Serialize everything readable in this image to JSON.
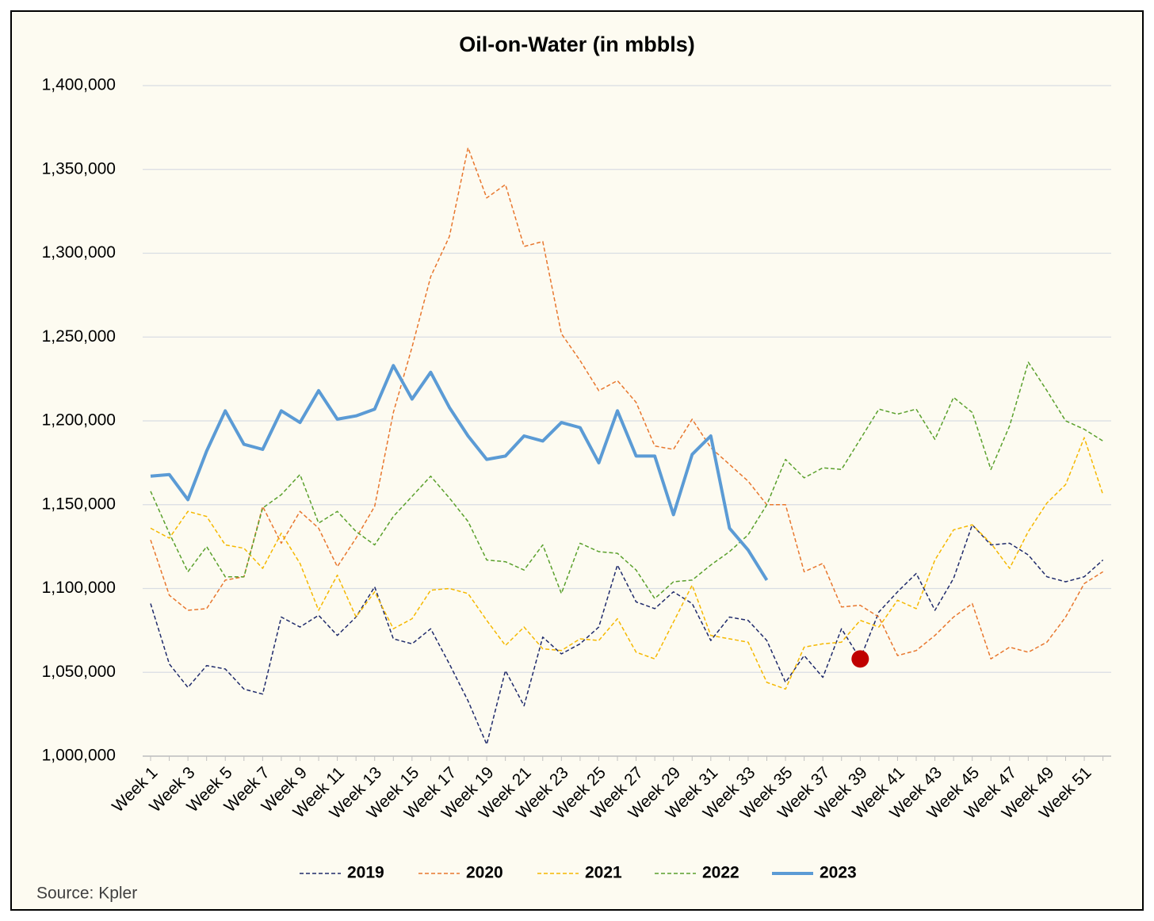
{
  "chart_data": {
    "type": "line",
    "title": "Oil-on-Water (in mbbls)",
    "source": "Source: Kpler",
    "categories": [
      "Week 1",
      null,
      "Week 3",
      null,
      "Week 5",
      null,
      "Week 7",
      null,
      "Week 9",
      null,
      "Week 11",
      null,
      "Week 13",
      null,
      "Week 15",
      null,
      "Week 17",
      null,
      "Week 19",
      null,
      "Week 21",
      null,
      "Week 23",
      null,
      "Week 25",
      null,
      "Week 27",
      null,
      "Week 29",
      null,
      "Week 31",
      null,
      "Week 33",
      null,
      "Week 35",
      null,
      "Week 37",
      null,
      "Week 39",
      null,
      "Week 41",
      null,
      "Week 43",
      null,
      "Week 45",
      null,
      "Week 47",
      null,
      "Week 49",
      null,
      "Week 51",
      null
    ],
    "ylim": [
      1000000,
      1400000
    ],
    "yticks": [
      {
        "value": 1000000,
        "label": "1,000,000"
      },
      {
        "value": 1050000,
        "label": "1,050,000"
      },
      {
        "value": 1100000,
        "label": "1,100,000"
      },
      {
        "value": 1150000,
        "label": "1,150,000"
      },
      {
        "value": 1200000,
        "label": "1,200,000"
      },
      {
        "value": 1250000,
        "label": "1,250,000"
      },
      {
        "value": 1300000,
        "label": "1,300,000"
      },
      {
        "value": 1350000,
        "label": "1,350,000"
      },
      {
        "value": 1400000,
        "label": "1,400,000"
      }
    ],
    "grid": true,
    "legend": "bottom",
    "series": [
      {
        "name": "2019",
        "color": "#1f2a6b",
        "style": "dashed",
        "width": 1.5,
        "values": [
          1091000,
          1055000,
          1041000,
          1054000,
          1052000,
          1040000,
          1037000,
          1083000,
          1077000,
          1084000,
          1072000,
          1083000,
          1101000,
          1070000,
          1067000,
          1076000,
          1055000,
          1033000,
          1007000,
          1051000,
          1030000,
          1071000,
          1061000,
          1067000,
          1077000,
          1114000,
          1092000,
          1088000,
          1098000,
          1091000,
          1069000,
          1083000,
          1081000,
          1069000,
          1044000,
          1060000,
          1047000,
          1076000,
          1058000,
          1086000,
          1098000,
          1109000,
          1087000,
          1106000,
          1138000,
          1126000,
          1127000,
          1120000,
          1107000,
          1104000,
          1107000,
          1117000
        ]
      },
      {
        "name": "2020",
        "color": "#e8772e",
        "style": "dashed",
        "width": 1.5,
        "values": [
          1129000,
          1096000,
          1087000,
          1088000,
          1105000,
          1107000,
          1149000,
          1127000,
          1146000,
          1136000,
          1113000,
          1130000,
          1149000,
          1205000,
          1244000,
          1286000,
          1310000,
          1363000,
          1333000,
          1341000,
          1304000,
          1307000,
          1252000,
          1236000,
          1218000,
          1224000,
          1211000,
          1185000,
          1183000,
          1201000,
          1184000,
          1174000,
          1164000,
          1150000,
          1150000,
          1110000,
          1115000,
          1089000,
          1090000,
          1083000,
          1060000,
          1063000,
          1072000,
          1083000,
          1091000,
          1058000,
          1065000,
          1062000,
          1068000,
          1083000,
          1103000,
          1110000
        ]
      },
      {
        "name": "2021",
        "color": "#f5b800",
        "style": "dashed",
        "width": 1.5,
        "values": [
          1136000,
          1130000,
          1146000,
          1143000,
          1126000,
          1124000,
          1112000,
          1133000,
          1115000,
          1087000,
          1108000,
          1083000,
          1098000,
          1076000,
          1082000,
          1099000,
          1100000,
          1097000,
          1081000,
          1066000,
          1077000,
          1064000,
          1063000,
          1070000,
          1069000,
          1082000,
          1062000,
          1058000,
          1080000,
          1102000,
          1072000,
          1070000,
          1068000,
          1044000,
          1040000,
          1065000,
          1067000,
          1068000,
          1081000,
          1077000,
          1093000,
          1088000,
          1117000,
          1135000,
          1138000,
          1127000,
          1112000,
          1134000,
          1151000,
          1162000,
          1190000,
          1156000
        ]
      },
      {
        "name": "2022",
        "color": "#5aa02c",
        "style": "dashed",
        "width": 1.5,
        "values": [
          1158000,
          1133000,
          1110000,
          1125000,
          1107000,
          1107000,
          1148000,
          1156000,
          1168000,
          1139000,
          1146000,
          1134000,
          1126000,
          1143000,
          1155000,
          1167000,
          1154000,
          1140000,
          1117000,
          1116000,
          1111000,
          1126000,
          1097000,
          1127000,
          1122000,
          1121000,
          1111000,
          1094000,
          1104000,
          1105000,
          1114000,
          1122000,
          1132000,
          1150000,
          1177000,
          1166000,
          1172000,
          1171000,
          1189000,
          1207000,
          1204000,
          1207000,
          1189000,
          1214000,
          1205000,
          1171000,
          1197000,
          1235000,
          1218000,
          1200000,
          1195000,
          1188000
        ]
      },
      {
        "name": "2023",
        "color": "#5b9bd5",
        "style": "solid",
        "width": 4,
        "values": [
          1167000,
          1168000,
          1153000,
          1182000,
          1206000,
          1186000,
          1183000,
          1206000,
          1199000,
          1218000,
          1201000,
          1203000,
          1207000,
          1233000,
          1213000,
          1229000,
          1208000,
          1191000,
          1177000,
          1179000,
          1191000,
          1188000,
          1199000,
          1196000,
          1175000,
          1206000,
          1179000,
          1179000,
          1144000,
          1180000,
          1191000,
          1136000,
          1123000,
          1105000,
          null,
          null,
          null,
          null,
          null,
          null,
          null,
          null,
          null,
          null,
          null,
          null,
          null,
          null,
          null,
          null,
          null,
          null
        ]
      }
    ],
    "highlight": {
      "category": "Week 39",
      "value": 1058000,
      "color": "#c00000"
    }
  }
}
